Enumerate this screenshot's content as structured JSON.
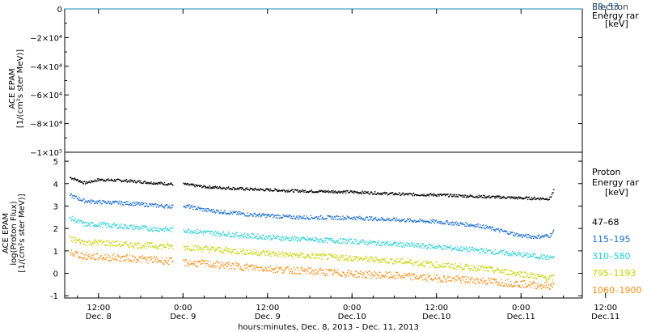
{
  "chart_data": [
    {
      "type": "line",
      "title": "",
      "ylabel_lines": [
        "ACE EPAM",
        "[1/(cm²s ster MeV)]"
      ],
      "ylim": [
        -100000,
        0
      ],
      "y_ticks": [
        {
          "value": 0,
          "label": "0"
        },
        {
          "value": -20000,
          "label": "−2×10⁴"
        },
        {
          "value": -40000,
          "label": "−4×10⁴"
        },
        {
          "value": -60000,
          "label": "−6×10⁴"
        },
        {
          "value": -80000,
          "label": "−8×10⁴"
        },
        {
          "value": -100000,
          "label": "−1×10⁵"
        }
      ],
      "legend": {
        "title_lines": [
          "Electron",
          "Energy rar",
          "[keV]"
        ],
        "overlapping_label": "38–53",
        "position": "right"
      },
      "series": [
        {
          "color": "#1a8cc0",
          "points": [
            [
              0,
              0
            ],
            [
              78,
              0
            ]
          ]
        }
      ]
    },
    {
      "type": "scatter",
      "title": "",
      "ylabel_lines": [
        "ACE EPAM",
        "log(Proton Flux)",
        "[1/(cm²s ster MeV)]"
      ],
      "ylim": [
        -1.1,
        5.4
      ],
      "y_ticks": [
        -1,
        0,
        1,
        2,
        3,
        4,
        5
      ],
      "xlabel": "hours:minutes, Dec. 8, 2013 – Dec. 11, 2013",
      "x_unit": "hours from 00:00 Dec. 8, 2013",
      "xlim": [
        7.2,
        80.7
      ],
      "x_ticks": [
        {
          "value": 12,
          "time": "12:00",
          "date": "Dec. 8"
        },
        {
          "value": 24,
          "time": "0:00",
          "date": "Dec. 9"
        },
        {
          "value": 36,
          "time": "12:00",
          "date": "Dec. 9"
        },
        {
          "value": 48,
          "time": "0:00",
          "date": "Dec.10"
        },
        {
          "value": 60,
          "time": "12:00",
          "date": "Dec.10"
        },
        {
          "value": 72,
          "time": "0:00",
          "date": "Dec.11"
        },
        {
          "value": 84,
          "time": "12:00",
          "date": "Dec.11"
        }
      ],
      "legend": {
        "title_lines": [
          "Proton",
          "Energy rar",
          "[keV]"
        ],
        "position": "right"
      },
      "series": [
        {
          "name": "47–68",
          "color": "#000000",
          "points": [
            [
              7.9,
              4.3
            ],
            [
              10,
              4.05
            ],
            [
              12,
              4.2
            ],
            [
              16,
              4.15
            ],
            [
              20,
              4.05
            ],
            [
              22.5,
              4.0
            ],
            [
              24,
              4.0
            ],
            [
              27,
              3.88
            ],
            [
              33,
              3.78
            ],
            [
              40,
              3.7
            ],
            [
              48,
              3.65
            ],
            [
              55,
              3.55
            ],
            [
              60,
              3.52
            ],
            [
              66,
              3.45
            ],
            [
              72,
              3.38
            ],
            [
              76,
              3.35
            ],
            [
              76.6,
              3.72
            ]
          ]
        },
        {
          "name": "115–195",
          "color": "#1c6fd1",
          "points": [
            [
              7.9,
              3.5
            ],
            [
              10,
              3.25
            ],
            [
              12,
              3.2
            ],
            [
              16,
              3.15
            ],
            [
              20,
              3.05
            ],
            [
              22.5,
              3.0
            ],
            [
              24,
              3.05
            ],
            [
              27,
              2.85
            ],
            [
              33,
              2.65
            ],
            [
              40,
              2.52
            ],
            [
              48,
              2.5
            ],
            [
              55,
              2.4
            ],
            [
              60,
              2.32
            ],
            [
              66,
              2.15
            ],
            [
              72,
              1.7
            ],
            [
              74,
              1.65
            ],
            [
              76,
              1.7
            ],
            [
              76.6,
              1.9
            ]
          ]
        },
        {
          "name": "310–580",
          "color": "#22d0d6",
          "points": [
            [
              7.9,
              2.5
            ],
            [
              10,
              2.2
            ],
            [
              12,
              2.2
            ],
            [
              16,
              2.1
            ],
            [
              20,
              2.0
            ],
            [
              24,
              1.95
            ],
            [
              27,
              1.85
            ],
            [
              33,
              1.7
            ],
            [
              40,
              1.55
            ],
            [
              48,
              1.45
            ],
            [
              55,
              1.3
            ],
            [
              60,
              1.2
            ],
            [
              66,
              1.05
            ],
            [
              72,
              0.85
            ],
            [
              76,
              0.72
            ],
            [
              76.6,
              0.75
            ]
          ]
        },
        {
          "name": "795–1193",
          "color": "#c8d400",
          "points": [
            [
              7.9,
              1.55
            ],
            [
              10,
              1.4
            ],
            [
              12,
              1.4
            ],
            [
              16,
              1.3
            ],
            [
              20,
              1.25
            ],
            [
              24,
              1.2
            ],
            [
              27,
              1.12
            ],
            [
              33,
              0.98
            ],
            [
              40,
              0.82
            ],
            [
              48,
              0.7
            ],
            [
              55,
              0.55
            ],
            [
              60,
              0.4
            ],
            [
              66,
              0.25
            ],
            [
              72,
              0.0
            ],
            [
              76,
              -0.2
            ],
            [
              76.6,
              -0.15
            ]
          ]
        },
        {
          "name": "1060–1900",
          "color": "#ff8c10",
          "points": [
            [
              7.9,
              0.95
            ],
            [
              10,
              0.78
            ],
            [
              12,
              0.75
            ],
            [
              16,
              0.7
            ],
            [
              20,
              0.62
            ],
            [
              24,
              0.5
            ],
            [
              27,
              0.45
            ],
            [
              33,
              0.3
            ],
            [
              40,
              0.15
            ],
            [
              48,
              0.0
            ],
            [
              55,
              -0.1
            ],
            [
              60,
              -0.2
            ],
            [
              66,
              -0.3
            ],
            [
              72,
              -0.45
            ],
            [
              76,
              -0.55
            ],
            [
              76.6,
              -0.5
            ]
          ]
        }
      ]
    }
  ]
}
